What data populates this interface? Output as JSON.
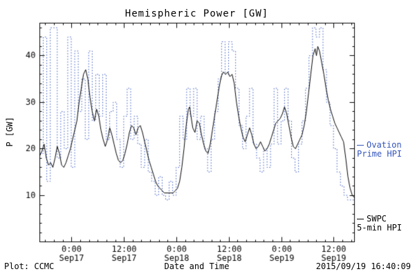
{
  "title": "Hemispheric Power [GW]",
  "axes": {
    "x_label": "Date and Time",
    "y_label": "P [GW]"
  },
  "footer": {
    "left": "Plot: CCMC",
    "right": "2015/09/19 16:40:09"
  },
  "legend": {
    "ovation": {
      "line1": "Ovation",
      "line2": "Prime HPI",
      "color": "#3355bb"
    },
    "swpc": {
      "line1": "SWPC",
      "line2": "5-min HPI",
      "color": "#000000"
    }
  },
  "chart_data": {
    "type": "line",
    "title": "Hemispheric Power [GW]",
    "xlabel": "Date and Time",
    "ylabel": "P [GW]",
    "x_unit": "hours since 2015-09-16 16:40",
    "xlim": [
      0,
      72
    ],
    "ylim": [
      0,
      47
    ],
    "y_ticks": [
      10,
      20,
      30,
      40
    ],
    "y_minor_step": 2,
    "x_minor_step": 2,
    "x_ticks": [
      {
        "t": 7.33,
        "line1": "0:00",
        "line2": "Sep17"
      },
      {
        "t": 19.33,
        "line1": "12:00",
        "line2": "Sep17"
      },
      {
        "t": 31.33,
        "line1": "0:00",
        "line2": "Sep18"
      },
      {
        "t": 43.33,
        "line1": "12:00",
        "line2": "Sep18"
      },
      {
        "t": 55.33,
        "line1": "0:00",
        "line2": "Sep19"
      },
      {
        "t": 67.33,
        "line1": "12:00",
        "line2": "Sep19"
      }
    ],
    "series": [
      {
        "name": "Ovation Prime HPI",
        "color": "#3355bb",
        "style": "dotted",
        "mode": "step",
        "points": [
          [
            0,
            19
          ],
          [
            0.8,
            44
          ],
          [
            1.6,
            13
          ],
          [
            2.4,
            46
          ],
          [
            3.2,
            46
          ],
          [
            4,
            18
          ],
          [
            4.8,
            28
          ],
          [
            5.6,
            20
          ],
          [
            6.4,
            44
          ],
          [
            7.2,
            16
          ],
          [
            8,
            41
          ],
          [
            8.8,
            28
          ],
          [
            9.6,
            35
          ],
          [
            10.4,
            22
          ],
          [
            11.2,
            41
          ],
          [
            12,
            26
          ],
          [
            12.8,
            36
          ],
          [
            13.6,
            27
          ],
          [
            14.4,
            36
          ],
          [
            15.2,
            22
          ],
          [
            16,
            28
          ],
          [
            16.8,
            30
          ],
          [
            17.6,
            22
          ],
          [
            18.4,
            16
          ],
          [
            19.2,
            27
          ],
          [
            20,
            33
          ],
          [
            20.8,
            22
          ],
          [
            21.6,
            27
          ],
          [
            22.4,
            21
          ],
          [
            23.2,
            16
          ],
          [
            24,
            22
          ],
          [
            24.8,
            15
          ],
          [
            25.6,
            13
          ],
          [
            26.4,
            10
          ],
          [
            27.2,
            14
          ],
          [
            28,
            10
          ],
          [
            28.8,
            9
          ],
          [
            29.6,
            13
          ],
          [
            30.4,
            10
          ],
          [
            31.2,
            16
          ],
          [
            32,
            27
          ],
          [
            32.8,
            22
          ],
          [
            33.6,
            33
          ],
          [
            34.4,
            27
          ],
          [
            35.2,
            33
          ],
          [
            36,
            22
          ],
          [
            36.8,
            27
          ],
          [
            37.6,
            20
          ],
          [
            38.4,
            15
          ],
          [
            39.2,
            22
          ],
          [
            40,
            28
          ],
          [
            40.8,
            35
          ],
          [
            41.6,
            43
          ],
          [
            42.4,
            36
          ],
          [
            43.2,
            43
          ],
          [
            44,
            41
          ],
          [
            44.8,
            33
          ],
          [
            45.6,
            25
          ],
          [
            46.4,
            20
          ],
          [
            47.2,
            27
          ],
          [
            48,
            33
          ],
          [
            48.8,
            21
          ],
          [
            49.6,
            18
          ],
          [
            50.4,
            15
          ],
          [
            51.2,
            20
          ],
          [
            52,
            16
          ],
          [
            52.8,
            21
          ],
          [
            53.6,
            33
          ],
          [
            54.4,
            21
          ],
          [
            55.2,
            26
          ],
          [
            56,
            33
          ],
          [
            56.8,
            26
          ],
          [
            57.6,
            18
          ],
          [
            58.4,
            15
          ],
          [
            59.2,
            21
          ],
          [
            60,
            26
          ],
          [
            60.8,
            33
          ],
          [
            61.6,
            40
          ],
          [
            62.4,
            46
          ],
          [
            63.2,
            44
          ],
          [
            64,
            46
          ],
          [
            64.8,
            37
          ],
          [
            65.6,
            30
          ],
          [
            66.4,
            25
          ],
          [
            67.2,
            20
          ],
          [
            68,
            15
          ],
          [
            68.8,
            12
          ],
          [
            69.6,
            10
          ],
          [
            70.4,
            9
          ],
          [
            71.2,
            9
          ],
          [
            72,
            9
          ]
        ]
      },
      {
        "name": "SWPC 5-min HPI",
        "color": "#000000",
        "style": "solid",
        "mode": "line",
        "points": [
          [
            0,
            18.5
          ],
          [
            0.5,
            19.5
          ],
          [
            1,
            21
          ],
          [
            1.5,
            18
          ],
          [
            2,
            16.5
          ],
          [
            2.5,
            17
          ],
          [
            3,
            16
          ],
          [
            3.5,
            18
          ],
          [
            4,
            20.5
          ],
          [
            4.5,
            19
          ],
          [
            5,
            16.5
          ],
          [
            5.5,
            16
          ],
          [
            6,
            17
          ],
          [
            6.5,
            18.5
          ],
          [
            7,
            20
          ],
          [
            7.5,
            22
          ],
          [
            8,
            24
          ],
          [
            8.5,
            26
          ],
          [
            9,
            30
          ],
          [
            9.5,
            33
          ],
          [
            10,
            36
          ],
          [
            10.5,
            37
          ],
          [
            11,
            35
          ],
          [
            11.5,
            31
          ],
          [
            12,
            28
          ],
          [
            12.5,
            26
          ],
          [
            13,
            28.5
          ],
          [
            13.5,
            27
          ],
          [
            14,
            24
          ],
          [
            14.5,
            22
          ],
          [
            15,
            20.5
          ],
          [
            15.5,
            22
          ],
          [
            16,
            24.5
          ],
          [
            16.5,
            23
          ],
          [
            17,
            21
          ],
          [
            17.5,
            19
          ],
          [
            18,
            17.5
          ],
          [
            18.5,
            17
          ],
          [
            19,
            17.5
          ],
          [
            19.5,
            19
          ],
          [
            20,
            21
          ],
          [
            20.5,
            23.5
          ],
          [
            21,
            25
          ],
          [
            21.5,
            24.5
          ],
          [
            22,
            23
          ],
          [
            22.5,
            24.5
          ],
          [
            23,
            25
          ],
          [
            23.5,
            23.5
          ],
          [
            24,
            21.5
          ],
          [
            24.5,
            19.5
          ],
          [
            25,
            17.5
          ],
          [
            25.5,
            16
          ],
          [
            26,
            14.5
          ],
          [
            26.5,
            13
          ],
          [
            27,
            12
          ],
          [
            27.5,
            11.5
          ],
          [
            28,
            11
          ],
          [
            28.5,
            10.5
          ],
          [
            29.5,
            10.5
          ],
          [
            30.5,
            10.5
          ],
          [
            31,
            11
          ],
          [
            31.5,
            11.5
          ],
          [
            32,
            13
          ],
          [
            32.5,
            16
          ],
          [
            33,
            20
          ],
          [
            33.5,
            25
          ],
          [
            34,
            28.5
          ],
          [
            34.3,
            29
          ],
          [
            34.6,
            27
          ],
          [
            35,
            24.5
          ],
          [
            35.5,
            23.5
          ],
          [
            36,
            26
          ],
          [
            36.5,
            25.5
          ],
          [
            37,
            23
          ],
          [
            37.5,
            21
          ],
          [
            38,
            19.5
          ],
          [
            38.5,
            19
          ],
          [
            39,
            21
          ],
          [
            39.5,
            24
          ],
          [
            40,
            27
          ],
          [
            40.5,
            30
          ],
          [
            41,
            33
          ],
          [
            41.5,
            35.5
          ],
          [
            42,
            36.5
          ],
          [
            42.5,
            36
          ],
          [
            43,
            36.5
          ],
          [
            43.5,
            35.5
          ],
          [
            44,
            36
          ],
          [
            44.5,
            34
          ],
          [
            45,
            30
          ],
          [
            45.5,
            27
          ],
          [
            46,
            24.5
          ],
          [
            46.5,
            22.5
          ],
          [
            47,
            21.5
          ],
          [
            47.5,
            23
          ],
          [
            48,
            24.5
          ],
          [
            48.5,
            23
          ],
          [
            49,
            21
          ],
          [
            49.5,
            20
          ],
          [
            50,
            20.5
          ],
          [
            50.5,
            21.5
          ],
          [
            51,
            20.5
          ],
          [
            51.5,
            19.5
          ],
          [
            52,
            20
          ],
          [
            52.5,
            21
          ],
          [
            53,
            22.5
          ],
          [
            53.5,
            24
          ],
          [
            54,
            25.5
          ],
          [
            54.5,
            26
          ],
          [
            55,
            26.5
          ],
          [
            55.5,
            27.5
          ],
          [
            56,
            29
          ],
          [
            56.5,
            27.5
          ],
          [
            57,
            25
          ],
          [
            57.5,
            22.5
          ],
          [
            58,
            20.5
          ],
          [
            58.5,
            20
          ],
          [
            59,
            21
          ],
          [
            59.5,
            22
          ],
          [
            60,
            23
          ],
          [
            60.5,
            25
          ],
          [
            61,
            28
          ],
          [
            61.5,
            32
          ],
          [
            62,
            36
          ],
          [
            62.5,
            40
          ],
          [
            63,
            41.5
          ],
          [
            63.3,
            40
          ],
          [
            63.6,
            42
          ],
          [
            64,
            41
          ],
          [
            64.5,
            38.5
          ],
          [
            65,
            36
          ],
          [
            65.5,
            33
          ],
          [
            66,
            30.5
          ],
          [
            66.5,
            28.5
          ],
          [
            67,
            27
          ],
          [
            67.5,
            25.5
          ],
          [
            68,
            24.5
          ],
          [
            68.5,
            23.5
          ],
          [
            69,
            22.5
          ],
          [
            69.5,
            21.5
          ],
          [
            70,
            18
          ],
          [
            70.5,
            14
          ],
          [
            71,
            11.5
          ],
          [
            71.5,
            10
          ],
          [
            72,
            9.5
          ]
        ]
      }
    ]
  }
}
